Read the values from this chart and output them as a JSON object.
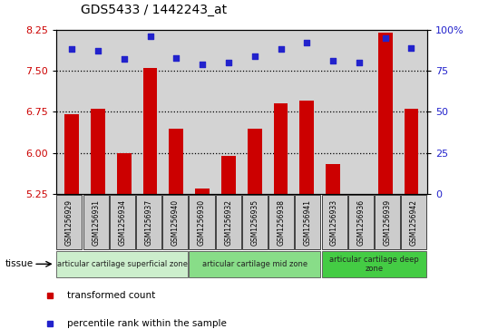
{
  "title": "GDS5433 / 1442243_at",
  "samples": [
    "GSM1256929",
    "GSM1256931",
    "GSM1256934",
    "GSM1256937",
    "GSM1256940",
    "GSM1256930",
    "GSM1256932",
    "GSM1256935",
    "GSM1256938",
    "GSM1256941",
    "GSM1256933",
    "GSM1256936",
    "GSM1256939",
    "GSM1256942"
  ],
  "bar_values": [
    6.7,
    6.8,
    6.0,
    7.55,
    6.45,
    5.35,
    5.95,
    6.45,
    6.9,
    6.95,
    5.8,
    5.25,
    8.2,
    6.8
  ],
  "scatter_values": [
    88,
    87,
    82,
    96,
    83,
    79,
    80,
    84,
    88,
    92,
    81,
    80,
    95,
    89
  ],
  "ylim_left": [
    5.25,
    8.25
  ],
  "ylim_right": [
    0,
    100
  ],
  "yticks_left": [
    5.25,
    6.0,
    6.75,
    7.5,
    8.25
  ],
  "yticks_right": [
    0,
    25,
    50,
    75,
    100
  ],
  "ytick_labels_right": [
    "0",
    "25",
    "50",
    "75",
    "100%"
  ],
  "hlines": [
    6.0,
    6.75,
    7.5
  ],
  "bar_color": "#cc0000",
  "scatter_color": "#2222cc",
  "bar_bottom": 5.25,
  "groups": [
    {
      "label": "articular cartilage superficial zone",
      "start": 0,
      "end": 5,
      "color": "#cceecc"
    },
    {
      "label": "articular cartilage mid zone",
      "start": 5,
      "end": 10,
      "color": "#88dd88"
    },
    {
      "label": "articular cartilage deep\nzone",
      "start": 10,
      "end": 14,
      "color": "#44cc44"
    }
  ],
  "tissue_label": "tissue",
  "legend_items": [
    {
      "label": "transformed count",
      "color": "#cc0000"
    },
    {
      "label": "percentile rank within the sample",
      "color": "#2222cc"
    }
  ],
  "bg_color": "#d3d3d3",
  "cell_bg": "#cccccc"
}
